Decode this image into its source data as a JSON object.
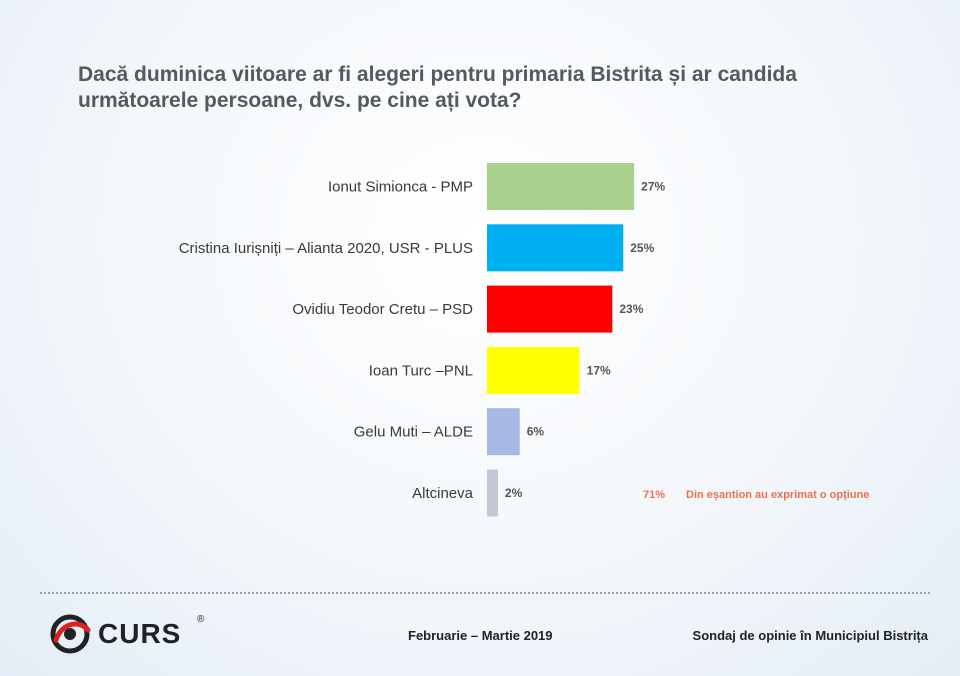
{
  "title": "Dacă duminica viitoare ar fi alegeri pentru primaria Bistrita și ar candida următoarele persoane, dvs. pe cine ați vota?",
  "chart_data": {
    "type": "bar",
    "orientation": "horizontal",
    "title": "Dacă duminica viitoare ar fi alegeri pentru primaria Bistrita și ar candida următoarele persoane, dvs. pe cine ați vota?",
    "categories": [
      "Ionut Simionca - PMP",
      "Cristina Iurișniți – Alianta 2020, USR - PLUS",
      "Ovidiu Teodor Cretu – PSD",
      "Ioan Turc –PNL",
      "Gelu Muti – ALDE",
      "Altcineva"
    ],
    "values": [
      27,
      25,
      23,
      17,
      6,
      2
    ],
    "value_labels": [
      "27%",
      "25%",
      "23%",
      "17%",
      "6%",
      "2%"
    ],
    "colors": [
      "#a9d18e",
      "#00b0f0",
      "#ff0000",
      "#ffff00",
      "#a6b8e4",
      "#c2c8d6"
    ],
    "xlim": [
      0,
      100
    ],
    "grid": false,
    "legend": "none"
  },
  "note": {
    "percent": "71%",
    "text": "Din eșantion au exprimat o opțiune",
    "color": "#e8734a"
  },
  "footer": {
    "logo_text": "CURS",
    "logo_reg": "®",
    "date": "Februarie – Martie 2019",
    "survey": "Sondaj de opinie în Municipiul Bistrița"
  }
}
